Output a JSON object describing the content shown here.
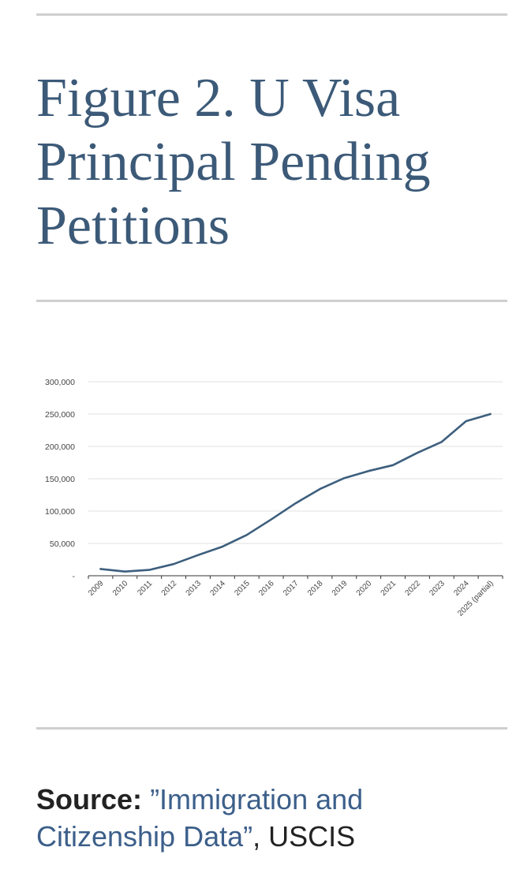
{
  "page": {
    "title": "Figure 2. U Visa Principal Pending Petitions",
    "source_label": "Source:",
    "source_link": "”Immigration and Citizenship Data”",
    "source_suffix": ", USCIS"
  },
  "chart_data": {
    "type": "line",
    "title": "",
    "xlabel": "",
    "ylabel": "",
    "categories": [
      "2009",
      "2010",
      "2011",
      "2012",
      "2013",
      "2014",
      "2015",
      "2016",
      "2017",
      "2018",
      "2019",
      "2020",
      "2021",
      "2022",
      "2023",
      "2024",
      "2025 (partial)"
    ],
    "series": [
      {
        "values": [
          10500,
          6500,
          9000,
          18000,
          32000,
          45000,
          63000,
          87000,
          112000,
          134000,
          151000,
          162000,
          171000,
          190000,
          207000,
          239000,
          250000
        ]
      }
    ],
    "ylim": [
      0,
      300000
    ],
    "yticks": [
      0,
      50000,
      100000,
      150000,
      200000,
      250000,
      300000
    ],
    "ytick_labels": [
      "-",
      "50,000",
      "100,000",
      "150,000",
      "200,000",
      "250,000",
      "300,000"
    ],
    "grid": true,
    "legend": "none",
    "colors": {
      "line": "#3d5f7e",
      "grid": "#e2e2e2",
      "axis": "#333333"
    }
  }
}
